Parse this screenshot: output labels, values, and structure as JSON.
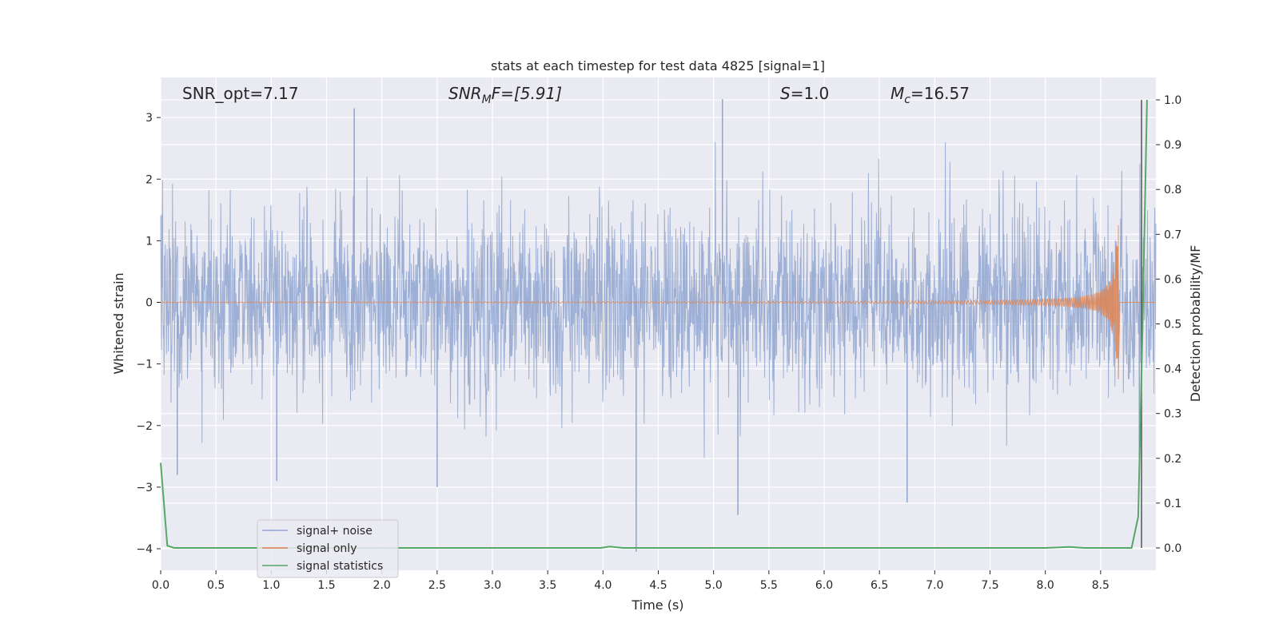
{
  "chart_data": {
    "type": "line",
    "title": "stats at each timestep for test data 4825 [signal=1]",
    "xlabel": "Time (s)",
    "ylabel": "Whitened strain",
    "ylabel_right": "Detection probability/MF",
    "xlim": [
      0.0,
      9.0
    ],
    "ylim": [
      -4.35,
      3.65
    ],
    "ylim_right": [
      -0.05,
      1.05
    ],
    "xticks": [
      0.0,
      0.5,
      1.0,
      1.5,
      2.0,
      2.5,
      3.0,
      3.5,
      4.0,
      4.5,
      5.0,
      5.5,
      6.0,
      6.5,
      7.0,
      7.5,
      8.0,
      8.5
    ],
    "xtick_labels": [
      "0.0",
      "0.5",
      "1.0",
      "1.5",
      "2.0",
      "2.5",
      "3.0",
      "3.5",
      "4.0",
      "4.5",
      "5.0",
      "5.5",
      "6.0",
      "6.5",
      "7.0",
      "7.5",
      "8.0",
      "8.5"
    ],
    "yticks": [
      -4,
      -3,
      -2,
      -1,
      0,
      1,
      2,
      3
    ],
    "ytick_labels": [
      "−4",
      "−3",
      "−2",
      "−1",
      "0",
      "1",
      "2",
      "3"
    ],
    "yticks_right": [
      0.0,
      0.1,
      0.2,
      0.3,
      0.4,
      0.5,
      0.6,
      0.7,
      0.8,
      0.9,
      1.0
    ],
    "ytick_labels_right": [
      "0.0",
      "0.1",
      "0.2",
      "0.3",
      "0.4",
      "0.5",
      "0.6",
      "0.7",
      "0.8",
      "0.9",
      "1.0"
    ],
    "grid": true,
    "legend_position": "lower-left",
    "annotations": {
      "snr_opt": "SNR_opt=7.17",
      "snr_mf_main": "SNR",
      "snr_mf_sub": "M",
      "snr_mf_rest": "F=[5.91]",
      "s_main": "S",
      "s_rest": "=1.0",
      "mc_main": "M",
      "mc_sub": "c",
      "mc_rest": "=16.57"
    },
    "series": [
      {
        "name": "signal+ noise",
        "color": "#8fa4cf",
        "axis": "left",
        "description_values": {
          "t_start": 0.0,
          "t_end": 9.0,
          "mean": 0.0,
          "std": 0.75,
          "notable_peaks": [
            {
              "t": 0.15,
              "y": -2.8
            },
            {
              "t": 1.05,
              "y": -2.9
            },
            {
              "t": 1.75,
              "y": 3.15
            },
            {
              "t": 2.5,
              "y": -3.0
            },
            {
              "t": 4.3,
              "y": -4.05
            },
            {
              "t": 5.08,
              "y": 3.3
            },
            {
              "t": 5.22,
              "y": -3.45
            },
            {
              "t": 6.75,
              "y": -3.25
            },
            {
              "t": 8.85,
              "y": -2.65
            }
          ]
        }
      },
      {
        "name": "signal only",
        "color": "#dd8452",
        "axis": "left",
        "description_values": {
          "t_start": 0.0,
          "t_merger": 8.66,
          "amplitude_start": 0.0,
          "amplitude_peak": 1.25,
          "chirp": true
        }
      },
      {
        "name": "signal statistics",
        "color": "#55a868",
        "axis": "right",
        "points": [
          [
            0.0,
            0.19
          ],
          [
            0.06,
            0.005
          ],
          [
            0.12,
            0.0
          ],
          [
            1.0,
            0.0
          ],
          [
            2.0,
            0.0
          ],
          [
            3.0,
            0.0
          ],
          [
            3.98,
            0.0
          ],
          [
            4.06,
            0.003
          ],
          [
            4.18,
            0.0
          ],
          [
            5.0,
            0.0
          ],
          [
            6.0,
            0.0
          ],
          [
            7.0,
            0.0
          ],
          [
            8.0,
            0.0
          ],
          [
            8.22,
            0.002
          ],
          [
            8.35,
            0.0
          ],
          [
            8.78,
            0.0
          ],
          [
            8.84,
            0.07
          ],
          [
            8.88,
            0.5
          ],
          [
            8.92,
            1.0
          ]
        ]
      }
    ],
    "vertical_marker": {
      "x": 8.87,
      "color": "#555555"
    }
  },
  "colors": {
    "axes_bg": "#eaeaf2",
    "grid": "#ffffff",
    "noise": "#8fa4cf",
    "signal": "#dd8452",
    "stat": "#55a868"
  }
}
